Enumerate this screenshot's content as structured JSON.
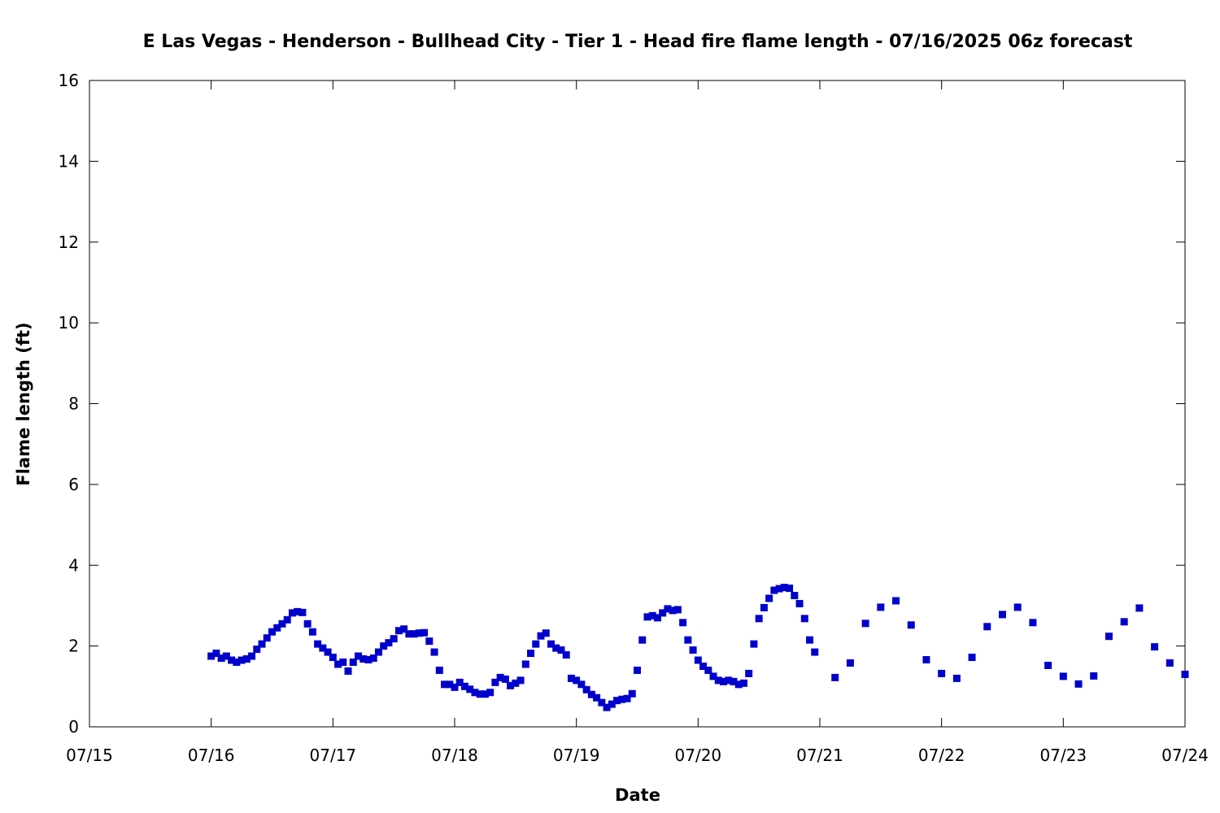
{
  "chart_data": {
    "type": "scatter",
    "title": "E Las Vegas - Henderson - Bullhead City - Tier 1 - Head fire flame length - 07/16/2025 06z forecast",
    "xlabel": "Date",
    "ylabel": "Flame length (ft)",
    "xlim": [
      "07/15",
      "07/24"
    ],
    "ylim": [
      0,
      16
    ],
    "x_ticks": [
      "07/15",
      "07/16",
      "07/17",
      "07/18",
      "07/19",
      "07/20",
      "07/21",
      "07/22",
      "07/23",
      "07/24"
    ],
    "y_ticks": [
      "0",
      "2",
      "4",
      "6",
      "8",
      "10",
      "12",
      "14",
      "16"
    ],
    "grid": false,
    "legend": "none",
    "marker": "square",
    "marker_color": "#0000cc",
    "series": [
      {
        "x": [
          "07/16 00:00",
          "07/16 01:00",
          "07/16 02:00",
          "07/16 03:00",
          "07/16 04:00",
          "07/16 05:00",
          "07/16 06:00",
          "07/16 07:00",
          "07/16 08:00",
          "07/16 09:00",
          "07/16 10:00",
          "07/16 11:00",
          "07/16 12:00",
          "07/16 13:00",
          "07/16 14:00",
          "07/16 15:00",
          "07/16 16:00",
          "07/16 17:00",
          "07/16 18:00",
          "07/16 19:00",
          "07/16 20:00",
          "07/16 21:00",
          "07/16 22:00",
          "07/16 23:00",
          "07/17 00:00",
          "07/17 01:00",
          "07/17 02:00",
          "07/17 03:00",
          "07/17 04:00",
          "07/17 05:00",
          "07/17 06:00",
          "07/17 07:00",
          "07/17 08:00",
          "07/17 09:00",
          "07/17 10:00",
          "07/17 11:00",
          "07/17 12:00",
          "07/17 13:00",
          "07/17 14:00",
          "07/17 15:00",
          "07/17 16:00",
          "07/17 17:00",
          "07/17 18:00",
          "07/17 19:00",
          "07/17 20:00",
          "07/17 21:00",
          "07/17 22:00",
          "07/17 23:00",
          "07/18 00:00",
          "07/18 01:00",
          "07/18 02:00",
          "07/18 03:00",
          "07/18 04:00",
          "07/18 05:00",
          "07/18 06:00",
          "07/18 07:00",
          "07/18 08:00",
          "07/18 09:00",
          "07/18 10:00",
          "07/18 11:00",
          "07/18 12:00",
          "07/18 13:00",
          "07/18 14:00",
          "07/18 15:00",
          "07/18 16:00",
          "07/18 17:00",
          "07/18 18:00",
          "07/18 19:00",
          "07/18 20:00",
          "07/18 21:00",
          "07/18 22:00",
          "07/18 23:00",
          "07/19 00:00",
          "07/19 01:00",
          "07/19 02:00",
          "07/19 03:00",
          "07/19 04:00",
          "07/19 05:00",
          "07/19 06:00",
          "07/19 07:00",
          "07/19 08:00",
          "07/19 09:00",
          "07/19 10:00",
          "07/19 11:00",
          "07/19 12:00",
          "07/19 13:00",
          "07/19 14:00",
          "07/19 15:00",
          "07/19 16:00",
          "07/19 17:00",
          "07/19 18:00",
          "07/19 19:00",
          "07/19 20:00",
          "07/19 21:00",
          "07/19 22:00",
          "07/19 23:00",
          "07/20 00:00",
          "07/20 01:00",
          "07/20 02:00",
          "07/20 03:00",
          "07/20 04:00",
          "07/20 05:00",
          "07/20 06:00",
          "07/20 07:00",
          "07/20 08:00",
          "07/20 09:00",
          "07/20 10:00",
          "07/20 11:00",
          "07/20 12:00",
          "07/20 13:00",
          "07/20 14:00",
          "07/20 15:00",
          "07/20 16:00",
          "07/20 17:00",
          "07/20 18:00",
          "07/20 19:00",
          "07/20 20:00",
          "07/20 21:00",
          "07/20 22:00",
          "07/20 23:00",
          "07/21 03:00",
          "07/21 06:00",
          "07/21 09:00",
          "07/21 12:00",
          "07/21 15:00",
          "07/21 18:00",
          "07/21 21:00",
          "07/22 00:00",
          "07/22 03:00",
          "07/22 06:00",
          "07/22 09:00",
          "07/22 12:00",
          "07/22 15:00",
          "07/22 18:00",
          "07/22 21:00",
          "07/23 00:00",
          "07/23 03:00",
          "07/23 06:00",
          "07/23 09:00",
          "07/23 12:00",
          "07/23 15:00",
          "07/23 18:00",
          "07/23 21:00",
          "07/24 00:00"
        ],
        "y": [
          1.75,
          1.82,
          1.7,
          1.75,
          1.65,
          1.6,
          1.65,
          1.68,
          1.75,
          1.92,
          2.05,
          2.2,
          2.35,
          2.45,
          2.55,
          2.65,
          2.82,
          2.85,
          2.83,
          2.55,
          2.35,
          2.05,
          1.95,
          1.85,
          1.72,
          1.55,
          1.6,
          1.38,
          1.6,
          1.75,
          1.68,
          1.66,
          1.7,
          1.85,
          2.0,
          2.08,
          2.18,
          2.38,
          2.42,
          2.3,
          2.3,
          2.32,
          2.33,
          2.12,
          1.85,
          1.4,
          1.05,
          1.05,
          0.98,
          1.1,
          1.0,
          0.93,
          0.85,
          0.81,
          0.81,
          0.85,
          1.1,
          1.22,
          1.18,
          1.02,
          1.08,
          1.15,
          1.55,
          1.82,
          2.05,
          2.25,
          2.32,
          2.05,
          1.95,
          1.9,
          1.78,
          1.2,
          1.15,
          1.05,
          0.92,
          0.8,
          0.72,
          0.6,
          0.48,
          0.56,
          0.65,
          0.68,
          0.7,
          0.82,
          1.4,
          2.15,
          2.72,
          2.75,
          2.7,
          2.82,
          2.92,
          2.88,
          2.9,
          2.58,
          2.15,
          1.9,
          1.65,
          1.5,
          1.4,
          1.25,
          1.15,
          1.12,
          1.15,
          1.12,
          1.05,
          1.08,
          1.32,
          2.05,
          2.68,
          2.95,
          3.18,
          3.38,
          3.42,
          3.45,
          3.43,
          3.25,
          3.05,
          2.68,
          2.15,
          1.85,
          1.22,
          1.58,
          2.56,
          2.96,
          3.12,
          2.52,
          1.66,
          1.32,
          1.2,
          1.72,
          2.48,
          2.78,
          2.96,
          2.58,
          1.52,
          1.25,
          1.06,
          1.26,
          2.24,
          2.6,
          2.94,
          1.98,
          1.58,
          1.3
        ]
      }
    ]
  }
}
